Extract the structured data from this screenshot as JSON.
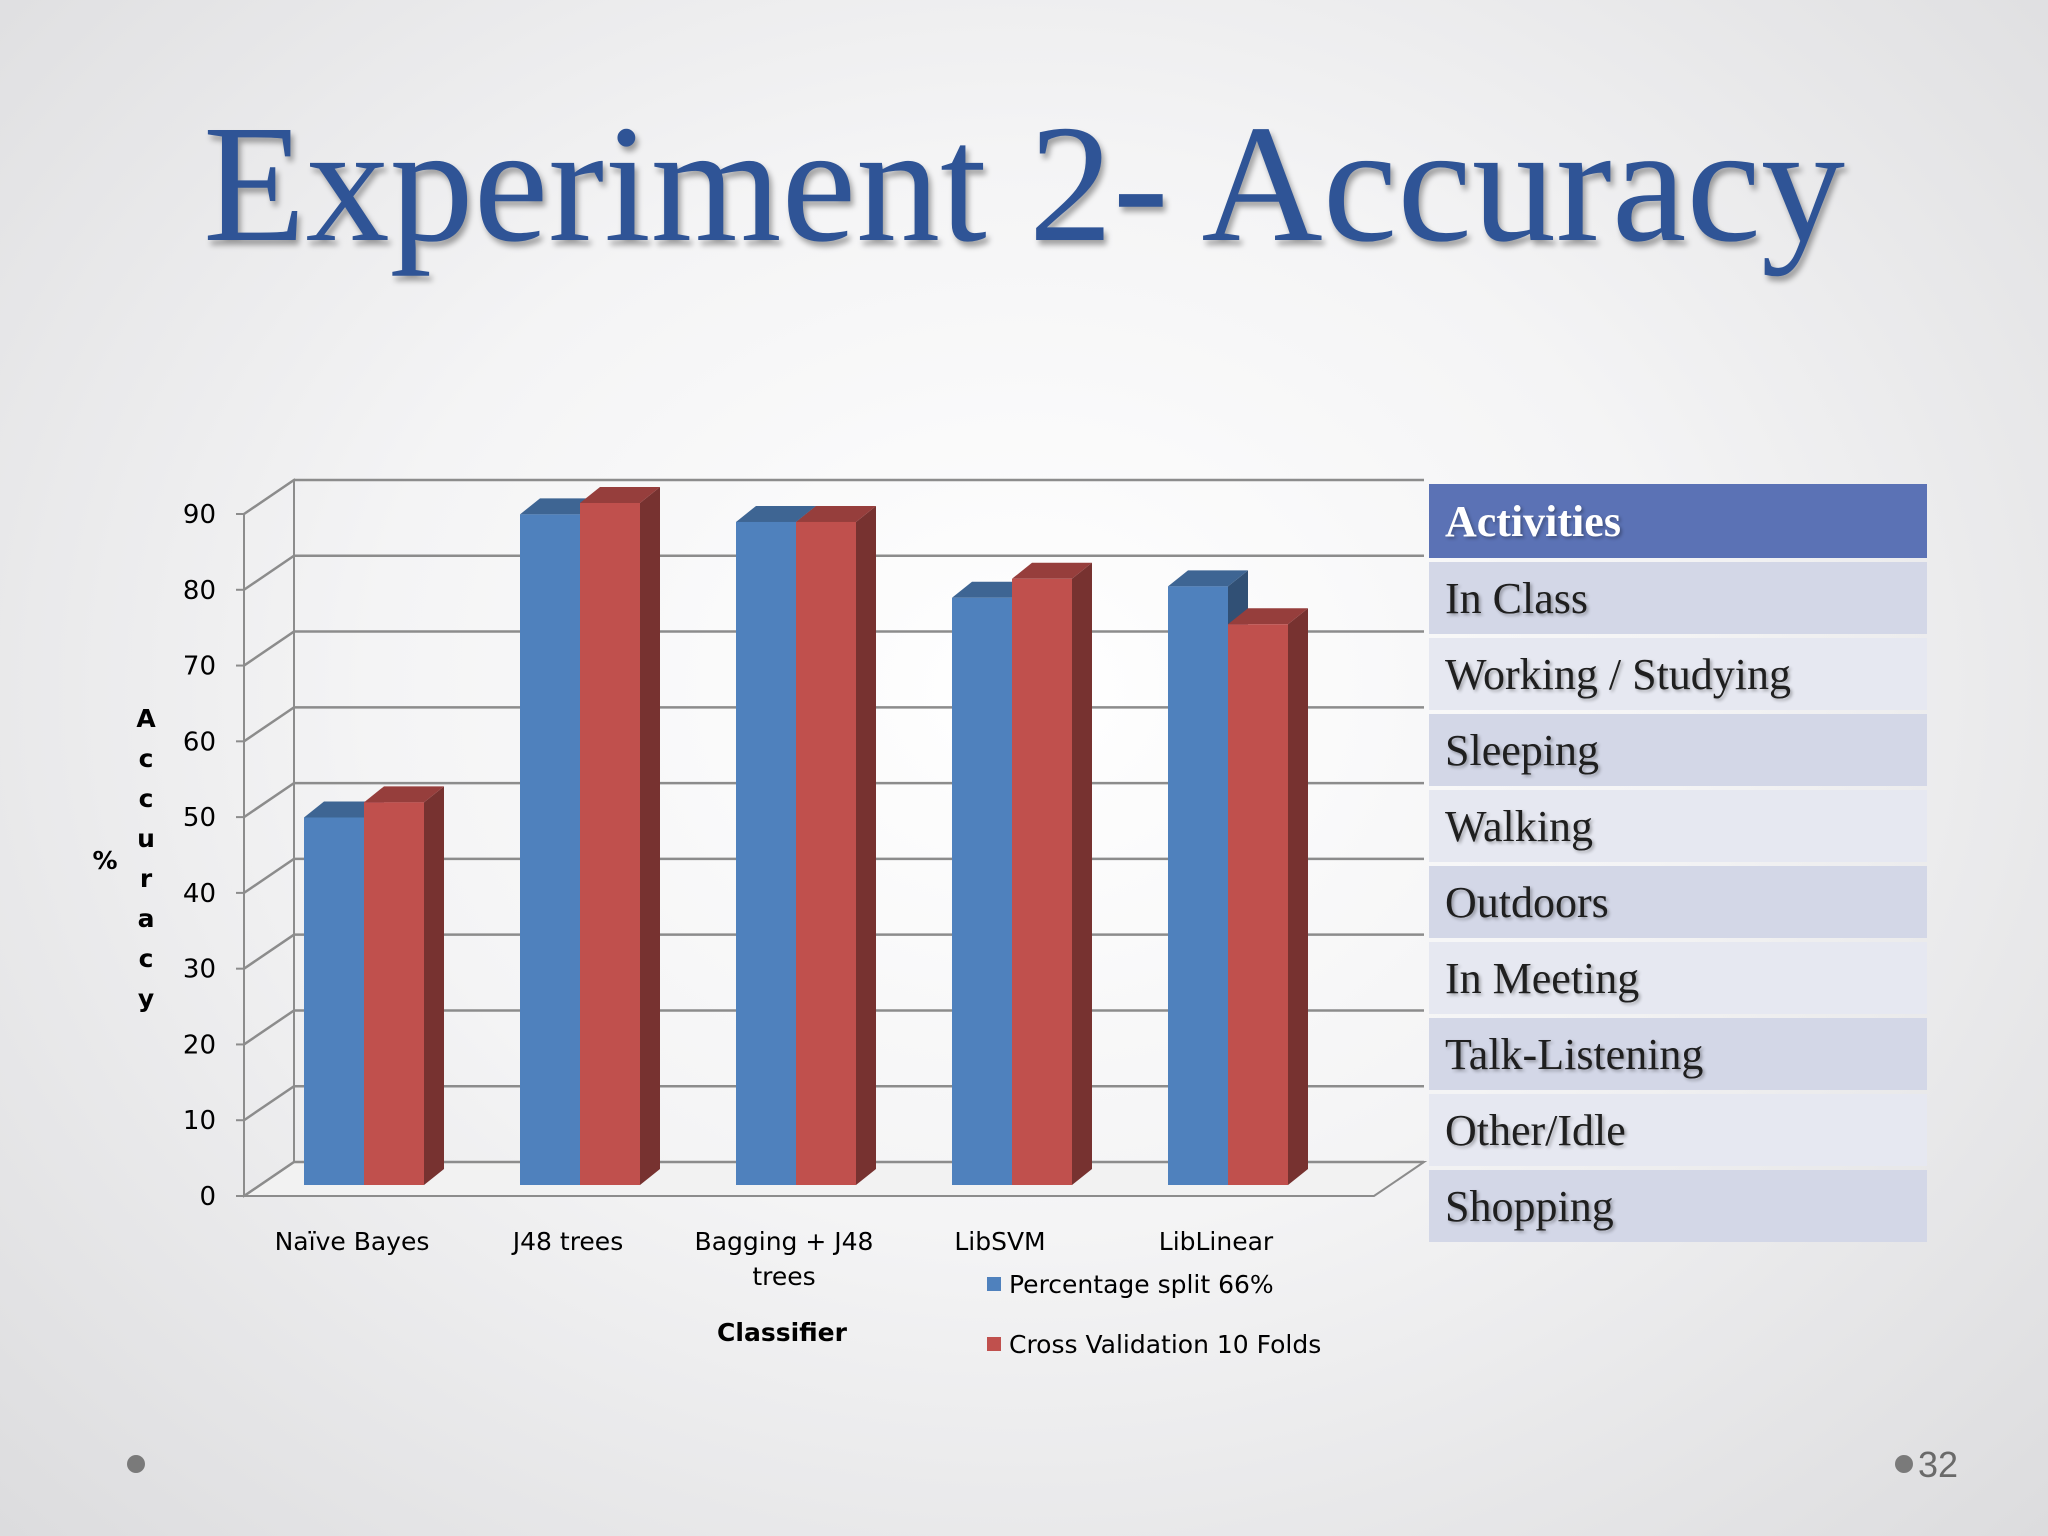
{
  "slide": {
    "title": "Experiment 2- Accuracy",
    "page_number": "32"
  },
  "chart_data": {
    "type": "bar",
    "style": "3d-clustered-column",
    "categories": [
      "Naïve Bayes",
      "J48 trees",
      "Bagging + J48 trees",
      "LibSVM",
      "LibLinear"
    ],
    "series": [
      {
        "name": "Percentage split 66%",
        "values": [
          48.5,
          88.5,
          87.5,
          77.5,
          79
        ],
        "color": "#4f81bd"
      },
      {
        "name": "Cross Validation 10 Folds",
        "values": [
          50.5,
          90,
          87.5,
          80,
          74
        ],
        "color": "#c0504d"
      }
    ],
    "xlabel": "Classifier",
    "ylabel": "% Accuracy",
    "ylabel_prefix": "%",
    "ylabel_word": "Accuracy",
    "ylim": [
      0,
      90
    ],
    "yticks": [
      0,
      10,
      20,
      30,
      40,
      50,
      60,
      70,
      80,
      90
    ],
    "grid": true,
    "legend": "bottom-right"
  },
  "activities": {
    "header": "Activities",
    "items": [
      "In Class",
      "Working / Studying",
      "Sleeping",
      "Walking",
      "Outdoors",
      "In Meeting",
      "Talk-Listening",
      "Other/Idle",
      "Shopping"
    ]
  },
  "colors": {
    "title": "#2f5496",
    "table_header": "#5b72b5",
    "table_row_odd": "#d3d7e7",
    "table_row_even": "#e6e8f1"
  }
}
